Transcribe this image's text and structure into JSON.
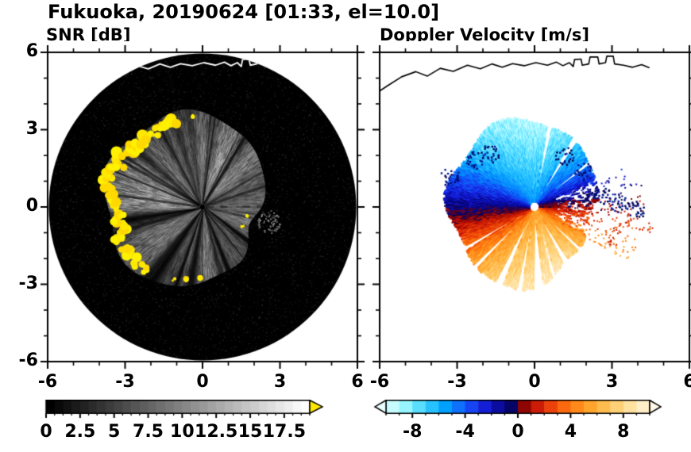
{
  "title": "Fukuoka, 20190624 [01:33, el=10.0]",
  "panels": [
    {
      "label": "SNR [dB]",
      "x_tick_labels": [
        "-6",
        "-3",
        "0",
        "3",
        "6"
      ],
      "y_tick_labels": [
        "6",
        "3",
        "0",
        "-3",
        "-6"
      ],
      "colorbar_labels": [
        "0",
        "2.5",
        "5",
        "7.5",
        "10",
        "12.5",
        "15",
        "17.5"
      ]
    },
    {
      "label": "Doppler Velocity [m/s]",
      "x_tick_labels": [
        "-6",
        "-3",
        "0",
        "3",
        "6"
      ],
      "y_tick_labels": [],
      "colorbar_labels": [
        "-8",
        "-4",
        "0",
        "4",
        "8"
      ]
    }
  ],
  "colors": {
    "axis": "#000000",
    "background": "#ffffff",
    "snr_disk": "#000000",
    "snr_overflow_yellow": "#ffe800",
    "coastline_left": "#ffffff",
    "coastline_right": "#000000"
  },
  "chart_data": [
    {
      "type": "heatmap",
      "title": "SNR [dB]",
      "xlabel": "",
      "ylabel": "",
      "xlim": [
        -6,
        6
      ],
      "ylim": [
        -6,
        6
      ],
      "x_ticks": [
        -6,
        -3,
        0,
        3,
        6
      ],
      "y_ticks": [
        -6,
        -3,
        0,
        3,
        6
      ],
      "minor_tick_step": 1,
      "grid": false,
      "colorbar": {
        "min": 0,
        "max": 19.375,
        "label_values": [
          0,
          2.5,
          5,
          7.5,
          10,
          12.5,
          15,
          17.5
        ],
        "minor_tick_step": 0.625,
        "discrete_blocks": 31,
        "colormap": "grayscale-black-to-white",
        "overflow_arrow_color": "#ffe800"
      },
      "content": "PPI radar scan: black 6 km-radius scan disk with faint speckle noise; grayscale precipitation echo with radial streak texture extending ~2.4-4.3 km from the radar (larger toward the west); saturated strong-echo cells (yellow, above colorbar maximum) along the west and southwest rim plus small cells at the south and east edges; white coastline drawn across the top of the disk"
    },
    {
      "type": "heatmap",
      "title": "Doppler Velocity [m/s]",
      "xlabel": "",
      "ylabel": "",
      "xlim": [
        -6,
        6
      ],
      "ylim": [
        -6,
        6
      ],
      "x_ticks": [
        -6,
        -3,
        0,
        3,
        6
      ],
      "y_ticks": [
        -6,
        -3,
        0,
        3,
        6
      ],
      "minor_tick_step": 1,
      "grid": false,
      "colorbar": {
        "min": -10,
        "max": 10,
        "label_values": [
          -8,
          -4,
          0,
          4,
          8
        ],
        "minor_tick_step": 1,
        "major_tick_step": 4,
        "discrete_blocks": 20,
        "end_arrows": true,
        "left_arrow_color": "#eaffff",
        "right_arrow_color": "#fff8e8",
        "colormap_stops": [
          [
            -10,
            [
              223,
              255,
              255
            ]
          ],
          [
            -8.5,
            [
              150,
              245,
              255
            ]
          ],
          [
            -7,
            [
              60,
              210,
              255
            ]
          ],
          [
            -5.5,
            [
              0,
              160,
              255
            ]
          ],
          [
            -4,
            [
              20,
              90,
              250
            ]
          ],
          [
            -3,
            [
              25,
              45,
              235
            ]
          ],
          [
            -2,
            [
              15,
              15,
              190
            ]
          ],
          [
            -1,
            [
              8,
              8,
              130
            ]
          ],
          [
            -0.05,
            [
              5,
              0,
              75
            ]
          ],
          [
            0.05,
            [
              110,
              0,
              0
            ]
          ],
          [
            1,
            [
              180,
              10,
              5
            ]
          ],
          [
            2,
            [
              225,
              45,
              10
            ]
          ],
          [
            3,
            [
              245,
              85,
              10
            ]
          ],
          [
            4,
            [
              255,
              125,
              15
            ]
          ],
          [
            5.5,
            [
              255,
              165,
              45
            ]
          ],
          [
            7,
            [
              255,
              200,
              95
            ]
          ],
          [
            8.5,
            [
              255,
              225,
              160
            ]
          ],
          [
            10,
            [
              255,
              246,
              220
            ]
          ]
        ]
      },
      "content": "Same PPI scan shown as Doppler velocity on a white background: negative velocities (cyan-blue, toward the radar) north of the radar and positive velocities (red-orange-cream, away) to the south; very dark navy / dark red along the east-west zero-isodop; white radial gaps on blocked azimuths and a sparse speckled sector east of the radar with detached dark-navy and red cells; black coastline at top"
    }
  ],
  "coastline": [
    [
      -6.3,
      4.3
    ],
    [
      -5.7,
      4.7
    ],
    [
      -5.15,
      5.05
    ],
    [
      -4.6,
      5.25
    ],
    [
      -4.15,
      5.08
    ],
    [
      -3.65,
      5.38
    ],
    [
      -3.15,
      5.26
    ],
    [
      -2.6,
      5.5
    ],
    [
      -2.1,
      5.36
    ],
    [
      -1.65,
      5.55
    ],
    [
      -1.25,
      5.42
    ],
    [
      -0.85,
      5.56
    ],
    [
      -0.4,
      5.48
    ],
    [
      0.05,
      5.6
    ],
    [
      0.5,
      5.5
    ],
    [
      0.85,
      5.62
    ],
    [
      1.1,
      5.48
    ],
    [
      1.35,
      5.6
    ],
    [
      1.5,
      5.45
    ],
    [
      1.55,
      5.72
    ],
    [
      1.8,
      5.74
    ],
    [
      1.85,
      5.5
    ],
    [
      2.1,
      5.55
    ],
    [
      2.15,
      5.82
    ],
    [
      2.45,
      5.82
    ],
    [
      2.5,
      5.55
    ],
    [
      2.75,
      5.6
    ],
    [
      2.8,
      5.85
    ],
    [
      3.05,
      5.85
    ],
    [
      3.1,
      5.55
    ],
    [
      3.45,
      5.5
    ],
    [
      3.8,
      5.42
    ],
    [
      4.15,
      5.52
    ],
    [
      4.45,
      5.4
    ]
  ]
}
